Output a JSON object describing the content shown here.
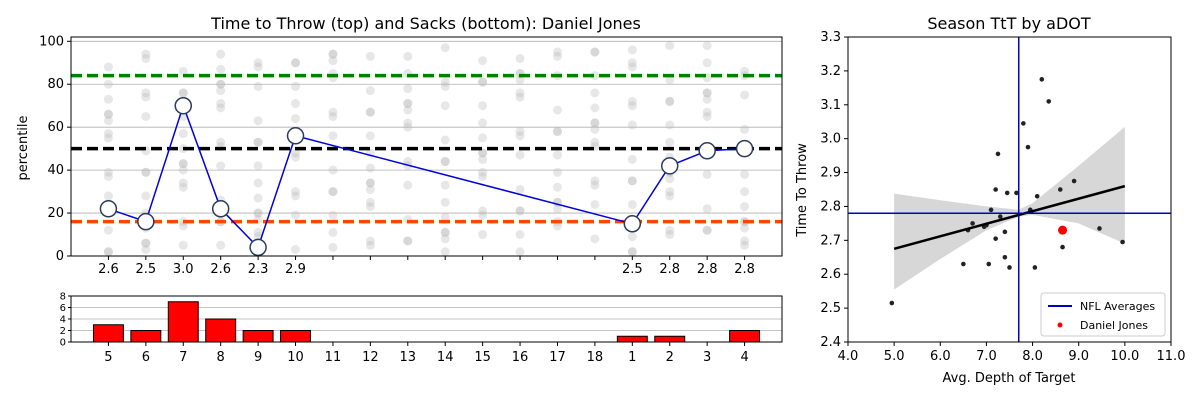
{
  "colors": {
    "player_line": "#0000dd",
    "green_line": "#008000",
    "black_line": "#000000",
    "orange_line": "#ff4500",
    "sack_bar": "#ff0000",
    "bg_dots": "#bbbbbb",
    "ci_band": "#d3d3d3",
    "nfl_avg": "#0000bb",
    "player_dot": "#ff0000"
  },
  "chart_data": [
    {
      "type": "line",
      "title": "Time to Throw (top) and Sacks (bottom): Daniel Jones",
      "ylabel": "percentile",
      "ylim": [
        0,
        102
      ],
      "yticks": [
        0,
        20,
        40,
        60,
        80,
        100
      ],
      "x_slots": 18,
      "reference_lines": [
        {
          "y": 84,
          "color": "green"
        },
        {
          "y": 50,
          "color": "black"
        },
        {
          "y": 16,
          "color": "orangered"
        }
      ],
      "games": [
        {
          "slot": 0,
          "label": "2.6",
          "percentile": 22,
          "team_icon": "seahawks-logo"
        },
        {
          "slot": 1,
          "label": "2.5",
          "percentile": 16,
          "team_icon": "bengals-logo"
        },
        {
          "slot": 2,
          "label": "3.0",
          "percentile": 70,
          "team_icon": "eagles-logo"
        },
        {
          "slot": 3,
          "label": "2.6",
          "percentile": 22,
          "team_icon": "steelers-logo"
        },
        {
          "slot": 4,
          "label": "2.3",
          "percentile": 4,
          "team_icon": "commanders-logo"
        },
        {
          "slot": 5,
          "label": "2.9",
          "percentile": 56,
          "team_icon": "panthers-logo"
        },
        {
          "slot": 14,
          "label": "2.5",
          "percentile": 15,
          "team_icon": "dolphins-logo"
        },
        {
          "slot": 15,
          "label": "2.8",
          "percentile": 42,
          "team_icon": "broncos-logo"
        },
        {
          "slot": 16,
          "label": "2.8",
          "percentile": 49,
          "team_icon": "titans-logo"
        },
        {
          "slot": 17,
          "label": "2.8",
          "percentile": 50,
          "team_icon": "rams-logo"
        }
      ],
      "background_dots_note": "League-wide weekly QB percentiles shown as faint grey dots per slot"
    },
    {
      "type": "bar",
      "ylim": [
        0,
        8
      ],
      "yticks": [
        0,
        2,
        4,
        6,
        8
      ],
      "categories": [
        "5",
        "6",
        "7",
        "8",
        "9",
        "10",
        "11",
        "12",
        "13",
        "14",
        "15",
        "16",
        "17",
        "18",
        "1",
        "2",
        "3",
        "4"
      ],
      "values": [
        3,
        2,
        7,
        4,
        2,
        2,
        0,
        0,
        0,
        0,
        0,
        0,
        0,
        0,
        1,
        1,
        0,
        2
      ]
    },
    {
      "type": "scatter",
      "title": "Season TtT by aDOT",
      "xlabel": "Avg. Depth of Target",
      "ylabel": "Time To Throw",
      "xlim": [
        4.0,
        11.0
      ],
      "ylim": [
        2.4,
        3.3
      ],
      "xticks": [
        "4.0",
        "5.0",
        "6.0",
        "7.0",
        "8.0",
        "9.0",
        "10.0",
        "11.0"
      ],
      "yticks": [
        "2.4",
        "2.5",
        "2.6",
        "2.7",
        "2.8",
        "2.9",
        "3.0",
        "3.1",
        "3.2",
        "3.3"
      ],
      "nfl_average": {
        "x": 7.7,
        "y": 2.78
      },
      "regression": {
        "x0": 5.0,
        "y0": 2.675,
        "x1": 10.0,
        "y1": 2.86
      },
      "ci_band": {
        "x": [
          5.0,
          6.0,
          7.0,
          7.7,
          8.0,
          9.0,
          10.0
        ],
        "lower": [
          2.555,
          2.645,
          2.73,
          2.77,
          2.775,
          2.75,
          2.69
        ],
        "upper": [
          2.838,
          2.818,
          2.8,
          2.79,
          2.81,
          2.92,
          3.035
        ]
      },
      "points": [
        {
          "x": 4.95,
          "y": 2.515
        },
        {
          "x": 6.5,
          "y": 2.63
        },
        {
          "x": 6.6,
          "y": 2.73
        },
        {
          "x": 6.7,
          "y": 2.75
        },
        {
          "x": 6.95,
          "y": 2.74
        },
        {
          "x": 7.0,
          "y": 2.745
        },
        {
          "x": 7.05,
          "y": 2.63
        },
        {
          "x": 7.1,
          "y": 2.79
        },
        {
          "x": 7.2,
          "y": 2.705
        },
        {
          "x": 7.2,
          "y": 2.85
        },
        {
          "x": 7.25,
          "y": 2.955
        },
        {
          "x": 7.3,
          "y": 2.77
        },
        {
          "x": 7.4,
          "y": 2.725
        },
        {
          "x": 7.4,
          "y": 2.65
        },
        {
          "x": 7.45,
          "y": 2.84
        },
        {
          "x": 7.5,
          "y": 2.62
        },
        {
          "x": 7.65,
          "y": 2.84
        },
        {
          "x": 7.8,
          "y": 3.045
        },
        {
          "x": 7.9,
          "y": 2.975
        },
        {
          "x": 7.95,
          "y": 2.79
        },
        {
          "x": 8.05,
          "y": 2.62
        },
        {
          "x": 8.1,
          "y": 2.83
        },
        {
          "x": 8.2,
          "y": 3.175
        },
        {
          "x": 8.35,
          "y": 3.11
        },
        {
          "x": 8.6,
          "y": 2.85
        },
        {
          "x": 8.65,
          "y": 2.68
        },
        {
          "x": 8.9,
          "y": 2.875
        },
        {
          "x": 9.45,
          "y": 2.735
        },
        {
          "x": 9.95,
          "y": 2.695
        }
      ],
      "player_point": {
        "x": 8.65,
        "y": 2.73
      },
      "legend": {
        "position": "lower-right",
        "entries": [
          "NFL Averages",
          "Daniel Jones"
        ]
      }
    }
  ]
}
